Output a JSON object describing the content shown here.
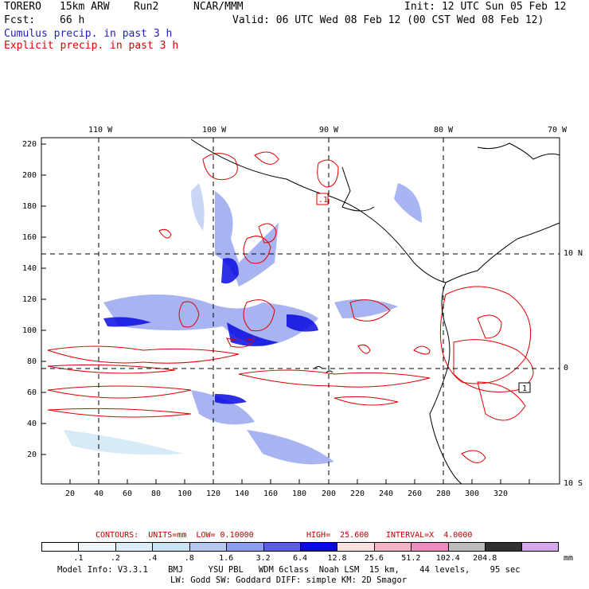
{
  "header": {
    "model": "TORERO",
    "resolution": "15km ARW",
    "run": "Run2",
    "org": "NCAR/MMM",
    "init": "Init: 12 UTC Sun 05 Feb 12",
    "fcst_label": "Fcst:",
    "fcst_value": "66 h",
    "valid": "Valid: 06 UTC Wed 08 Feb 12 (00 CST Wed 08 Feb 12)",
    "line3": "Cumulus precip. in past 3 h",
    "line4": "Explicit precip. in past 3 h"
  },
  "colors": {
    "blue_text": "#2020c0",
    "red_text": "#e00000"
  },
  "lon_labels": [
    "110 W",
    "100 W",
    "90 W",
    "80 W",
    "70 W"
  ],
  "lat_labels": [
    "10 N",
    "0",
    "10 S"
  ],
  "y_ticks": [
    "220",
    "200",
    "180",
    "160",
    "140",
    "120",
    "100",
    "80",
    "60",
    "40",
    "20"
  ],
  "x_ticks": [
    "20",
    "40",
    "60",
    "80",
    "100",
    "120",
    "140",
    "160",
    "180",
    "200",
    "220",
    "240",
    "260",
    "280",
    "300",
    "320"
  ],
  "contour_caption": {
    "units": "CONTOURS:  UNITS=mm  LOW= 0.10000",
    "high": "HIGH=  25.600",
    "interval": "INTERVAL=X  4.0000"
  },
  "legend": {
    "labels": [
      ".1",
      ".2",
      ".4",
      ".8",
      "1.6",
      "3.2",
      "6.4",
      "12.8",
      "25.6",
      "51.2",
      "102.4",
      "204.8"
    ],
    "unit": "mm",
    "colors": [
      "#ffffff",
      "#eef6fb",
      "#ddeef8",
      "#c9e3f5",
      "#b7c8f1",
      "#8c9cee",
      "#5b5ee8",
      "#0a0ae0",
      "#fbe0e0",
      "#f6b3c5",
      "#f08bc0",
      "#bdbdbd",
      "#303030",
      "#d7a8f0"
    ]
  },
  "model_info": {
    "line1": "Model Info: V3.3.1    BMJ     YSU PBL   WDM 6class  Noah LSM  15 km,    44 levels,    95 sec",
    "line2": "LW: Godd SW: Goddard DIFF: simple KM: 2D Smagor"
  },
  "map_labels": [
    ".1",
    "1"
  ]
}
